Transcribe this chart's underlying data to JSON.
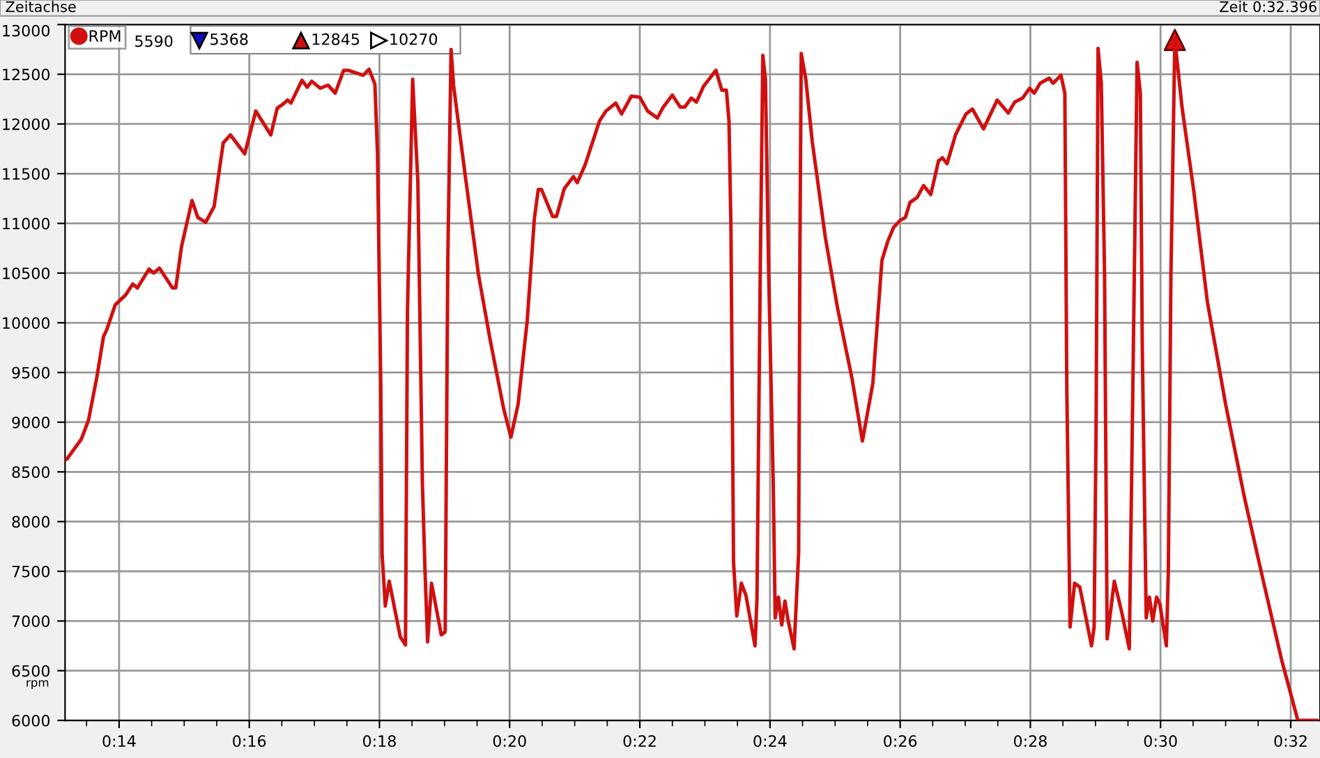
{
  "chart_data": {
    "type": "line",
    "title": "Zeitachse",
    "subtitle": "Zeit 0:32.396",
    "ylabel": "rpm",
    "annotations": [
      "5590",
      "5368",
      "12845",
      "10270"
    ],
    "xlim": [
      13.17,
      32.45
    ],
    "ylim": [
      6000,
      13000
    ],
    "xticks": [
      {
        "value": 13.5,
        "label": null
      },
      {
        "value": 14,
        "label": "0:14"
      },
      {
        "value": 14.5,
        "label": null
      },
      {
        "value": 15,
        "label": null
      },
      {
        "value": 15.5,
        "label": null
      },
      {
        "value": 16,
        "label": "0:16"
      },
      {
        "value": 16.5,
        "label": null
      },
      {
        "value": 17,
        "label": null
      },
      {
        "value": 17.5,
        "label": null
      },
      {
        "value": 18,
        "label": "0:18"
      },
      {
        "value": 18.5,
        "label": null
      },
      {
        "value": 19,
        "label": null
      },
      {
        "value": 19.5,
        "label": null
      },
      {
        "value": 20,
        "label": "0:20"
      },
      {
        "value": 20.5,
        "label": null
      },
      {
        "value": 21,
        "label": null
      },
      {
        "value": 21.5,
        "label": null
      },
      {
        "value": 22,
        "label": "0:22"
      },
      {
        "value": 22.5,
        "label": null
      },
      {
        "value": 23,
        "label": null
      },
      {
        "value": 23.5,
        "label": null
      },
      {
        "value": 24,
        "label": "0:24"
      },
      {
        "value": 24.5,
        "label": null
      },
      {
        "value": 25,
        "label": null
      },
      {
        "value": 25.5,
        "label": null
      },
      {
        "value": 26,
        "label": "0:26"
      },
      {
        "value": 26.5,
        "label": null
      },
      {
        "value": 27,
        "label": null
      },
      {
        "value": 27.5,
        "label": null
      },
      {
        "value": 28,
        "label": "0:28"
      },
      {
        "value": 28.5,
        "label": null
      },
      {
        "value": 29,
        "label": null
      },
      {
        "value": 29.5,
        "label": null
      },
      {
        "value": 30,
        "label": "0:30"
      },
      {
        "value": 30.5,
        "label": null
      },
      {
        "value": 31,
        "label": null
      },
      {
        "value": 31.5,
        "label": null
      },
      {
        "value": 32,
        "label": "0:32"
      }
    ],
    "yticks": [
      6000,
      6500,
      7000,
      7500,
      8000,
      8500,
      9000,
      9500,
      10000,
      10500,
      11000,
      11500,
      12000,
      12500,
      13000
    ],
    "grid": true,
    "legend": "top left",
    "marker": "none",
    "line_style": "solid",
    "series": [
      {
        "name": "RPM",
        "color": "#d01010",
        "x": [
          13.17,
          13.2,
          13.42,
          13.53,
          13.66,
          13.76,
          13.81,
          13.94,
          14.1,
          14.21,
          14.28,
          14.46,
          14.53,
          14.62,
          14.82,
          14.87,
          14.96,
          15.12,
          15.21,
          15.33,
          15.46,
          15.6,
          15.71,
          15.93,
          16.1,
          16.33,
          16.43,
          16.52,
          16.59,
          16.64,
          16.81,
          16.89,
          16.96,
          17.09,
          17.21,
          17.32,
          17.45,
          17.52,
          17.75,
          17.84,
          17.93,
          17.97,
          18.02,
          18.04,
          18.09,
          18.15,
          18.32,
          18.4,
          18.43,
          18.51,
          18.59,
          18.66,
          18.7,
          18.74,
          18.8,
          18.95,
          19.01,
          19.05,
          19.1,
          19.14,
          19.31,
          19.52,
          19.7,
          19.91,
          20.02,
          20.13,
          20.27,
          20.38,
          20.44,
          20.49,
          20.66,
          20.72,
          20.84,
          20.98,
          21.04,
          21.16,
          21.38,
          21.48,
          21.63,
          21.72,
          21.87,
          22.0,
          22.12,
          22.27,
          22.36,
          22.5,
          22.62,
          22.69,
          22.79,
          22.87,
          22.98,
          23.17,
          23.26,
          23.33,
          23.37,
          23.4,
          23.44,
          23.49,
          23.56,
          23.63,
          23.77,
          23.8,
          23.85,
          23.89,
          23.93,
          23.98,
          24.05,
          24.08,
          24.13,
          24.18,
          24.23,
          24.28,
          24.37,
          24.44,
          24.46,
          24.48,
          24.55,
          24.65,
          24.85,
          25.04,
          25.26,
          25.42,
          25.58,
          25.72,
          25.81,
          25.9,
          26.0,
          26.08,
          26.15,
          26.26,
          26.36,
          26.47,
          26.59,
          26.65,
          26.72,
          26.85,
          27.01,
          27.11,
          27.28,
          27.49,
          27.66,
          27.76,
          27.88,
          27.99,
          28.06,
          28.15,
          28.29,
          28.35,
          28.47,
          28.53,
          28.56,
          28.61,
          28.68,
          28.76,
          28.94,
          28.98,
          29.01,
          29.04,
          29.09,
          29.14,
          29.18,
          29.29,
          29.4,
          29.52,
          29.56,
          29.64,
          29.69,
          29.72,
          29.78,
          29.83,
          29.88,
          29.94,
          29.99,
          30.09,
          30.12,
          30.16,
          30.22,
          30.33,
          30.51,
          30.72,
          31.0,
          31.29,
          31.58,
          31.86,
          32.11,
          32.4
        ],
        "values": [
          8620,
          8630,
          8830,
          9020,
          9460,
          9860,
          9930,
          10180,
          10280,
          10390,
          10350,
          10540,
          10500,
          10550,
          10350,
          10350,
          10770,
          11230,
          11060,
          11010,
          11170,
          11810,
          11890,
          11700,
          12130,
          11890,
          12160,
          12200,
          12240,
          12210,
          12440,
          12370,
          12430,
          12360,
          12390,
          12310,
          12540,
          12540,
          12490,
          12550,
          12400,
          11700,
          9390,
          7680,
          7150,
          7400,
          6840,
          6760,
          10110,
          12450,
          11420,
          8380,
          7500,
          6790,
          7380,
          6860,
          6890,
          10630,
          12750,
          12380,
          11520,
          10490,
          9830,
          9130,
          8850,
          9180,
          10020,
          11050,
          11340,
          11340,
          11070,
          11070,
          11350,
          11470,
          11410,
          11590,
          12030,
          12130,
          12210,
          12100,
          12280,
          12270,
          12130,
          12060,
          12170,
          12290,
          12170,
          12170,
          12260,
          12220,
          12380,
          12540,
          12340,
          12340,
          12030,
          10960,
          7590,
          7050,
          7380,
          7260,
          6750,
          7220,
          10490,
          12690,
          12450,
          10490,
          8380,
          7030,
          7240,
          6960,
          7200,
          7000,
          6720,
          7680,
          10770,
          12710,
          12450,
          11820,
          10860,
          10140,
          9440,
          8810,
          9390,
          10630,
          10820,
          10960,
          11030,
          11060,
          11210,
          11260,
          11380,
          11290,
          11630,
          11660,
          11600,
          11890,
          12100,
          12150,
          11950,
          12240,
          12110,
          12220,
          12260,
          12360,
          12310,
          12410,
          12460,
          12410,
          12490,
          12310,
          9340,
          6940,
          7380,
          7340,
          6750,
          6940,
          8950,
          12760,
          12410,
          10490,
          6820,
          7400,
          7100,
          6720,
          8620,
          12620,
          12310,
          9740,
          7030,
          7240,
          7000,
          7240,
          7170,
          6750,
          7500,
          10490,
          12845,
          12170,
          11330,
          10210,
          9180,
          8240,
          7400,
          6610,
          6000,
          6000
        ]
      },
      {
        "type": "scatter",
        "color": "#e01010",
        "marker": "triangle",
        "x": [
          30.22
        ],
        "values": [
          12845
        ]
      }
    ]
  }
}
